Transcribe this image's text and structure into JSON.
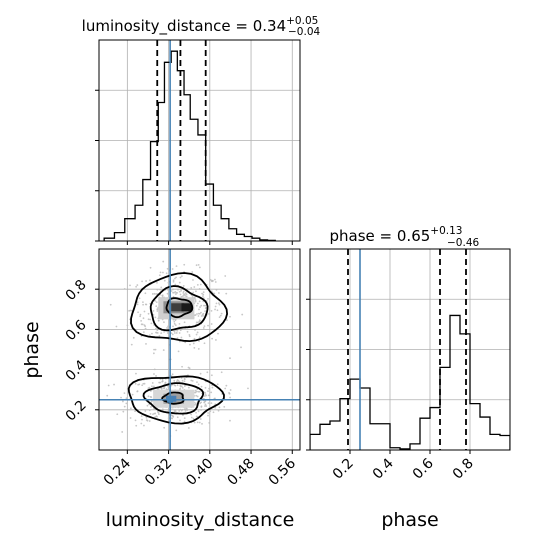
{
  "chart_data": [
    {
      "panel": "luminosity_distance-marginal",
      "type": "histogram",
      "title": {
        "prefix": "luminosity_distance = 0.34",
        "sup": "+0.05",
        "sub": "−0.04"
      },
      "xlim": [
        0.185,
        0.575
      ],
      "x_ticks": [
        0.24,
        0.32,
        0.4,
        0.48,
        0.56
      ],
      "y_ticks": [
        0.0,
        0.09,
        0.18,
        0.27
      ],
      "y_tick_labels": [],
      "grid": true,
      "bin_edges": [
        0.195,
        0.215,
        0.235,
        0.255,
        0.27,
        0.285,
        0.3,
        0.312,
        0.325,
        0.337,
        0.35,
        0.362,
        0.377,
        0.392,
        0.407,
        0.422,
        0.437,
        0.452,
        0.467,
        0.482,
        0.497,
        0.512,
        0.527
      ],
      "density": [
        0.005,
        0.015,
        0.04,
        0.064,
        0.11,
        0.178,
        0.248,
        0.32,
        0.34,
        0.305,
        0.262,
        0.218,
        0.19,
        0.102,
        0.064,
        0.04,
        0.022,
        0.012,
        0.008,
        0.005,
        0.002,
        0.001
      ],
      "quantiles": [
        0.298,
        0.343,
        0.392
      ],
      "truth": 0.323
    },
    {
      "panel": "phase-marginal",
      "type": "histogram",
      "title": {
        "prefix": "phase = 0.65",
        "sup": "+0.13",
        "sub": "−0.46"
      },
      "xlabel": "phase",
      "xlim": [
        0.0,
        1.0
      ],
      "x_ticks": [
        0.2,
        0.4,
        0.6,
        0.8
      ],
      "x_tick_labels": [
        "0.2",
        "0.4",
        "0.6",
        "0.8"
      ],
      "y_ticks": [
        0.0,
        0.09,
        0.18,
        0.27
      ],
      "y_tick_labels": [],
      "grid": true,
      "bin_edges": [
        0.0,
        0.05,
        0.1,
        0.15,
        0.2,
        0.25,
        0.3,
        0.35,
        0.4,
        0.45,
        0.5,
        0.55,
        0.6,
        0.65,
        0.7,
        0.75,
        0.8,
        0.85,
        0.9,
        0.95,
        1.0
      ],
      "density": [
        0.028,
        0.046,
        0.052,
        0.092,
        0.127,
        0.111,
        0.047,
        0.047,
        0.004,
        0.002,
        0.011,
        0.057,
        0.076,
        0.148,
        0.241,
        0.208,
        0.083,
        0.059,
        0.028,
        0.026
      ],
      "quantiles": [
        0.19,
        0.65,
        0.78
      ],
      "truth": 0.25
    },
    {
      "panel": "luminosity_distance-phase-2d",
      "type": "scatter",
      "xlabel": "luminosity_distance",
      "ylabel": "phase",
      "xlim": [
        0.185,
        0.575
      ],
      "ylim": [
        0.0,
        1.0
      ],
      "x_ticks": [
        0.24,
        0.32,
        0.4,
        0.48,
        0.56
      ],
      "x_tick_labels": [
        "0.24",
        "0.32",
        "0.40",
        "0.48",
        "0.56"
      ],
      "y_ticks": [
        0.2,
        0.4,
        0.6,
        0.8
      ],
      "y_tick_labels": [
        "0.2",
        "0.4",
        "0.6",
        "0.8"
      ],
      "grid": true,
      "modes": [
        {
          "x": 0.338,
          "y": 0.7,
          "sx": 0.045,
          "sy": 0.095
        },
        {
          "x": 0.332,
          "y": 0.255,
          "sx": 0.045,
          "sy": 0.065
        }
      ],
      "density_cells": [
        {
          "x": [
            0.3,
            0.37
          ],
          "y": [
            0.65,
            0.76
          ],
          "shade": "#cfcfcf"
        },
        {
          "x": [
            0.31,
            0.36
          ],
          "y": [
            0.68,
            0.74
          ],
          "shade": "#8f8f8f"
        },
        {
          "x": [
            0.325,
            0.35
          ],
          "y": [
            0.69,
            0.73
          ],
          "shade": "#3d3d3d"
        },
        {
          "x": [
            0.345,
            0.365
          ],
          "y": [
            0.69,
            0.73
          ],
          "shade": "#1a1a1a"
        },
        {
          "x": [
            0.29,
            0.37
          ],
          "y": [
            0.21,
            0.3
          ],
          "shade": "#d7d7d7"
        },
        {
          "x": [
            0.31,
            0.35
          ],
          "y": [
            0.23,
            0.28
          ],
          "shade": "#9f9f9f"
        },
        {
          "x": [
            0.315,
            0.335
          ],
          "y": [
            0.24,
            0.27
          ],
          "shade": "#4a7fb5"
        }
      ],
      "contours": [
        {
          "cx": 0.338,
          "cy": 0.7,
          "rx": 0.09,
          "ry": 0.165
        },
        {
          "cx": 0.338,
          "cy": 0.7,
          "rx": 0.055,
          "ry": 0.105
        },
        {
          "cx": 0.34,
          "cy": 0.71,
          "rx": 0.025,
          "ry": 0.045
        },
        {
          "cx": 0.332,
          "cy": 0.258,
          "rx": 0.09,
          "ry": 0.115
        },
        {
          "cx": 0.332,
          "cy": 0.258,
          "rx": 0.055,
          "ry": 0.075
        },
        {
          "cx": 0.33,
          "cy": 0.258,
          "rx": 0.02,
          "ry": 0.028
        }
      ],
      "truth": {
        "x": 0.323,
        "y": 0.25
      }
    }
  ],
  "colors": {
    "hist_line": "#000000",
    "truth_line": "#4682b4",
    "grid": "#b0b0b0",
    "points": "#bdbdbd",
    "contour": "#000000"
  }
}
